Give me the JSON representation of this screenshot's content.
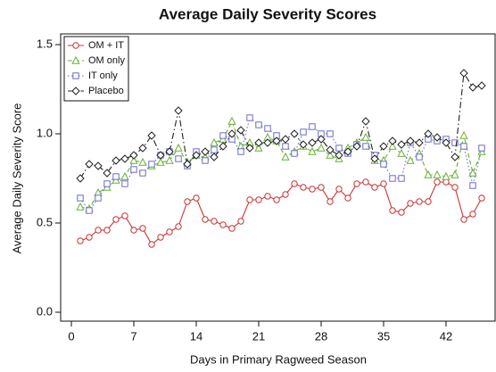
{
  "chart_data": {
    "type": "line",
    "title": "Average Daily Severity Scores",
    "x_label": "Days in Primary Ragweed Season",
    "y_label": "Average Daily Severity Score",
    "x": [
      1,
      2,
      3,
      4,
      5,
      6,
      7,
      8,
      9,
      10,
      11,
      12,
      13,
      14,
      15,
      16,
      17,
      18,
      19,
      20,
      21,
      22,
      23,
      24,
      25,
      26,
      27,
      28,
      29,
      30,
      31,
      32,
      33,
      34,
      35,
      36,
      37,
      38,
      39,
      40,
      41,
      42,
      43,
      44,
      45,
      46
    ],
    "xlim": [
      -1.2,
      47.5
    ],
    "xticks": [
      0,
      7,
      14,
      21,
      28,
      35,
      42
    ],
    "ylim": [
      -0.05,
      1.56
    ],
    "yticks": [
      {
        "value": 0,
        "label": "0.0"
      },
      0.5,
      {
        "value": 1,
        "label": "1.0"
      },
      1.5
    ],
    "legend": "top-left",
    "series": [
      {
        "name": "OM + IT",
        "color": "#cc3333",
        "marker": "circle",
        "dash": "solid",
        "values": [
          0.4,
          0.42,
          0.46,
          0.46,
          0.52,
          0.54,
          0.46,
          0.47,
          0.38,
          0.42,
          0.45,
          0.48,
          0.62,
          0.64,
          0.52,
          0.51,
          0.49,
          0.47,
          0.51,
          0.63,
          0.63,
          0.65,
          0.63,
          0.66,
          0.72,
          0.7,
          0.69,
          0.7,
          0.62,
          0.69,
          0.64,
          0.72,
          0.73,
          0.7,
          0.72,
          0.57,
          0.56,
          0.61,
          0.62,
          0.62,
          0.73,
          0.73,
          0.7,
          0.52,
          0.55,
          0.64
        ]
      },
      {
        "name": "OM only",
        "color": "#66b032",
        "marker": "triangle",
        "dash": "dashed",
        "values": [
          0.59,
          0.58,
          0.67,
          0.7,
          0.74,
          0.76,
          0.85,
          0.84,
          0.82,
          0.84,
          0.85,
          0.92,
          0.84,
          0.88,
          0.87,
          0.95,
          0.97,
          1.07,
          0.93,
          0.95,
          0.92,
          0.98,
          0.96,
          0.87,
          0.9,
          0.93,
          0.9,
          0.92,
          0.88,
          0.86,
          0.92,
          0.95,
          0.98,
          0.85,
          0.85,
          0.93,
          0.89,
          0.85,
          0.89,
          0.77,
          0.77,
          0.76,
          0.77,
          0.99,
          0.78,
          0.9
        ]
      },
      {
        "name": "IT only",
        "color": "#6b6bcc",
        "marker": "square",
        "dash": "dotted",
        "values": [
          0.64,
          0.57,
          0.64,
          0.72,
          0.76,
          0.72,
          0.8,
          0.78,
          0.83,
          0.88,
          0.9,
          0.86,
          0.82,
          0.9,
          0.85,
          0.91,
          0.99,
          0.97,
          0.9,
          1.09,
          1.05,
          1.03,
          0.99,
          0.93,
          0.89,
          1.01,
          1.04,
          1.0,
          1.0,
          0.92,
          0.89,
          0.94,
          0.93,
          0.88,
          0.83,
          0.75,
          0.75,
          0.95,
          0.87,
          0.97,
          0.96,
          0.97,
          0.95,
          0.93,
          0.71,
          0.92
        ]
      },
      {
        "name": "Placebo",
        "color": "#222222",
        "marker": "diamond",
        "dash": "dashdot",
        "values": [
          0.75,
          0.83,
          0.82,
          0.78,
          0.85,
          0.86,
          0.88,
          0.92,
          0.99,
          0.88,
          0.9,
          1.13,
          0.83,
          0.88,
          0.9,
          0.87,
          0.93,
          1.0,
          1.02,
          0.92,
          0.95,
          0.95,
          0.96,
          0.97,
          1.0,
          0.94,
          0.95,
          0.97,
          0.91,
          0.88,
          0.9,
          0.93,
          1.07,
          0.86,
          0.93,
          0.96,
          0.94,
          0.96,
          0.95,
          1.0,
          0.98,
          0.95,
          0.87,
          1.34,
          1.26,
          1.27
        ]
      }
    ]
  }
}
